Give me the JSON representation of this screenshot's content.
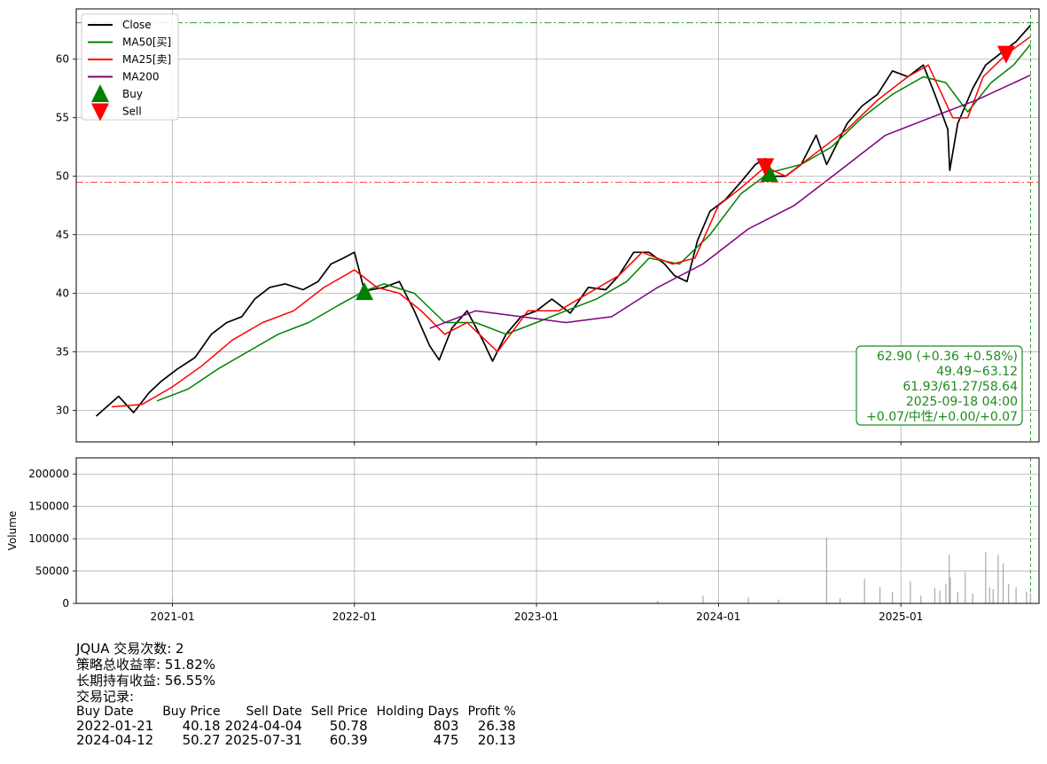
{
  "chart_data": [
    {
      "type": "line",
      "panel": "price",
      "ylim": [
        27.3,
        64.3
      ],
      "yticks": [
        30,
        35,
        40,
        45,
        50,
        55,
        60
      ],
      "x_range": [
        "2020-06-22",
        "2025-10-05"
      ],
      "grid": true,
      "legend": {
        "placement": "top-left",
        "entries": [
          {
            "label": "Close",
            "color": "#000000",
            "kind": "line"
          },
          {
            "label": "MA50[买]",
            "color": "#008000",
            "kind": "line"
          },
          {
            "label": "MA25[卖]",
            "color": "#ff0000",
            "kind": "line"
          },
          {
            "label": "MA200",
            "color": "#800080",
            "kind": "line"
          },
          {
            "label": "Buy",
            "color": "#008000",
            "kind": "triangle-up"
          },
          {
            "label": "Sell",
            "color": "#ff0000",
            "kind": "triangle-down"
          }
        ]
      },
      "series": [
        {
          "name": "Close",
          "color": "#000000",
          "points": [
            [
              "2020-08-01",
              29.5
            ],
            [
              "2020-09-15",
              31.2
            ],
            [
              "2020-10-15",
              29.8
            ],
            [
              "2020-11-15",
              31.5
            ],
            [
              "2020-12-10",
              32.5
            ],
            [
              "2021-01-10",
              33.5
            ],
            [
              "2021-02-15",
              34.5
            ],
            [
              "2021-03-20",
              36.5
            ],
            [
              "2021-04-20",
              37.5
            ],
            [
              "2021-05-20",
              38.0
            ],
            [
              "2021-06-15",
              39.5
            ],
            [
              "2021-07-15",
              40.5
            ],
            [
              "2021-08-15",
              40.8
            ],
            [
              "2021-09-20",
              40.3
            ],
            [
              "2021-10-20",
              41.0
            ],
            [
              "2021-11-15",
              42.5
            ],
            [
              "2021-12-10",
              43.0
            ],
            [
              "2022-01-01",
              43.5
            ],
            [
              "2022-01-21",
              40.2
            ],
            [
              "2022-03-01",
              40.5
            ],
            [
              "2022-04-01",
              41.0
            ],
            [
              "2022-05-01",
              38.5
            ],
            [
              "2022-06-01",
              35.5
            ],
            [
              "2022-06-20",
              34.3
            ],
            [
              "2022-07-15",
              37.0
            ],
            [
              "2022-08-15",
              38.5
            ],
            [
              "2022-09-15",
              36.0
            ],
            [
              "2022-10-05",
              34.2
            ],
            [
              "2022-11-01",
              36.5
            ],
            [
              "2022-12-01",
              38.0
            ],
            [
              "2023-01-01",
              38.5
            ],
            [
              "2023-02-01",
              39.5
            ],
            [
              "2023-03-10",
              38.3
            ],
            [
              "2023-04-15",
              40.5
            ],
            [
              "2023-05-20",
              40.3
            ],
            [
              "2023-06-15",
              41.5
            ],
            [
              "2023-07-15",
              43.5
            ],
            [
              "2023-08-15",
              43.5
            ],
            [
              "2023-09-15",
              42.5
            ],
            [
              "2023-10-05",
              41.5
            ],
            [
              "2023-10-30",
              41.0
            ],
            [
              "2023-11-20",
              44.5
            ],
            [
              "2023-12-15",
              47.0
            ],
            [
              "2024-01-15",
              48.0
            ],
            [
              "2024-02-15",
              49.5
            ],
            [
              "2024-03-15",
              51.0
            ],
            [
              "2024-04-04",
              51.5
            ],
            [
              "2024-04-20",
              50.0
            ],
            [
              "2024-05-15",
              50.0
            ],
            [
              "2024-06-15",
              51.0
            ],
            [
              "2024-07-15",
              53.5
            ],
            [
              "2024-08-05",
              51.0
            ],
            [
              "2024-09-15",
              54.5
            ],
            [
              "2024-10-15",
              56.0
            ],
            [
              "2024-11-15",
              57.0
            ],
            [
              "2024-12-15",
              59.0
            ],
            [
              "2025-01-15",
              58.5
            ],
            [
              "2025-02-15",
              59.5
            ],
            [
              "2025-03-10",
              57.0
            ],
            [
              "2025-04-05",
              54.0
            ],
            [
              "2025-04-09",
              50.5
            ],
            [
              "2025-04-25",
              54.5
            ],
            [
              "2025-05-25",
              57.5
            ],
            [
              "2025-06-20",
              59.5
            ],
            [
              "2025-07-20",
              60.5
            ],
            [
              "2025-08-20",
              61.5
            ],
            [
              "2025-09-18",
              62.9
            ]
          ]
        },
        {
          "name": "MA50[买]",
          "color": "#008000",
          "points": [
            [
              "2020-12-01",
              30.8
            ],
            [
              "2021-02-01",
              31.8
            ],
            [
              "2021-04-01",
              33.5
            ],
            [
              "2021-06-01",
              35.0
            ],
            [
              "2021-08-01",
              36.5
            ],
            [
              "2021-10-01",
              37.5
            ],
            [
              "2021-12-01",
              39.0
            ],
            [
              "2022-01-21",
              40.2
            ],
            [
              "2022-03-01",
              40.8
            ],
            [
              "2022-05-01",
              40.0
            ],
            [
              "2022-07-01",
              37.5
            ],
            [
              "2022-09-01",
              37.5
            ],
            [
              "2022-11-01",
              36.5
            ],
            [
              "2023-01-01",
              37.5
            ],
            [
              "2023-03-01",
              38.5
            ],
            [
              "2023-05-01",
              39.5
            ],
            [
              "2023-07-01",
              41.0
            ],
            [
              "2023-08-15",
              43.0
            ],
            [
              "2023-10-15",
              42.5
            ],
            [
              "2023-12-15",
              45.0
            ],
            [
              "2024-02-15",
              48.5
            ],
            [
              "2024-04-12",
              50.3
            ],
            [
              "2024-06-15",
              51.0
            ],
            [
              "2024-08-15",
              52.5
            ],
            [
              "2024-10-15",
              55.0
            ],
            [
              "2024-12-15",
              57.0
            ],
            [
              "2025-02-15",
              58.5
            ],
            [
              "2025-04-01",
              58.0
            ],
            [
              "2025-05-15",
              55.5
            ],
            [
              "2025-07-01",
              58.0
            ],
            [
              "2025-08-15",
              59.5
            ],
            [
              "2025-09-18",
              61.27
            ]
          ]
        },
        {
          "name": "MA25[卖]",
          "color": "#ff0000",
          "points": [
            [
              "2020-09-01",
              30.3
            ],
            [
              "2020-11-01",
              30.5
            ],
            [
              "2021-01-01",
              32.0
            ],
            [
              "2021-03-01",
              33.8
            ],
            [
              "2021-05-01",
              36.0
            ],
            [
              "2021-07-01",
              37.5
            ],
            [
              "2021-09-01",
              38.5
            ],
            [
              "2021-11-01",
              40.5
            ],
            [
              "2022-01-01",
              42.0
            ],
            [
              "2022-02-15",
              40.5
            ],
            [
              "2022-04-01",
              40.0
            ],
            [
              "2022-05-15",
              38.5
            ],
            [
              "2022-07-01",
              36.5
            ],
            [
              "2022-08-15",
              37.5
            ],
            [
              "2022-10-15",
              35.0
            ],
            [
              "2022-12-15",
              38.5
            ],
            [
              "2023-02-15",
              38.5
            ],
            [
              "2023-04-15",
              40.0
            ],
            [
              "2023-06-15",
              41.5
            ],
            [
              "2023-08-01",
              43.5
            ],
            [
              "2023-10-01",
              42.5
            ],
            [
              "2023-11-15",
              43.0
            ],
            [
              "2024-01-01",
              47.5
            ],
            [
              "2024-02-15",
              49.0
            ],
            [
              "2024-04-04",
              50.8
            ],
            [
              "2024-05-15",
              50.0
            ],
            [
              "2024-07-15",
              52.0
            ],
            [
              "2024-09-15",
              54.0
            ],
            [
              "2024-11-15",
              56.5
            ],
            [
              "2025-01-15",
              58.5
            ],
            [
              "2025-02-25",
              59.5
            ],
            [
              "2025-04-15",
              55.0
            ],
            [
              "2025-05-15",
              55.0
            ],
            [
              "2025-06-15",
              58.5
            ],
            [
              "2025-07-31",
              60.4
            ],
            [
              "2025-09-18",
              61.93
            ]
          ]
        },
        {
          "name": "MA200",
          "color": "#800080",
          "points": [
            [
              "2022-06-01",
              37.0
            ],
            [
              "2022-09-01",
              38.5
            ],
            [
              "2022-12-01",
              38.0
            ],
            [
              "2023-03-01",
              37.5
            ],
            [
              "2023-06-01",
              38.0
            ],
            [
              "2023-09-01",
              40.5
            ],
            [
              "2023-12-01",
              42.5
            ],
            [
              "2024-03-01",
              45.5
            ],
            [
              "2024-06-01",
              47.5
            ],
            [
              "2024-09-01",
              50.5
            ],
            [
              "2024-12-01",
              53.5
            ],
            [
              "2025-03-01",
              55.0
            ],
            [
              "2025-06-01",
              56.5
            ],
            [
              "2025-09-18",
              58.64
            ]
          ]
        }
      ],
      "markers": [
        {
          "kind": "buy",
          "date": "2022-01-21",
          "price": 40.18,
          "color": "#008000"
        },
        {
          "kind": "buy",
          "date": "2024-04-12",
          "price": 50.27,
          "color": "#008000"
        },
        {
          "kind": "sell",
          "date": "2024-04-04",
          "price": 50.78,
          "color": "#ff0000"
        },
        {
          "kind": "sell",
          "date": "2025-07-31",
          "price": 60.39,
          "color": "#ff0000"
        }
      ],
      "hlines": [
        {
          "y": 63.12,
          "color": "#2ca02c",
          "style": "dashdot"
        },
        {
          "y": 49.49,
          "color": "#ff4444",
          "style": "dashdot"
        }
      ],
      "vline": {
        "x": "2025-09-18",
        "color": "#2ca02c",
        "style": "dashed"
      },
      "info_box": {
        "lines": [
          "62.90 (+0.36 +0.58%)",
          "49.49~63.12",
          "61.93/61.27/58.64",
          "2025-09-18 04:00",
          "+0.07/中性/+0.00/+0.07"
        ],
        "color": "#1f8b1f"
      }
    },
    {
      "type": "bar",
      "panel": "volume",
      "ylabel": "Volume",
      "ylim": [
        0,
        225000
      ],
      "yticks": [
        0,
        50000,
        100000,
        150000,
        200000
      ],
      "xticks": [
        "2021-01",
        "2022-01",
        "2023-01",
        "2024-01",
        "2025-01"
      ],
      "grid": true,
      "color": "#aaaaaa",
      "bars": [
        [
          "2021-01-01",
          9000
        ],
        [
          "2022-01-01",
          4000
        ],
        [
          "2023-09-01",
          4000
        ],
        [
          "2023-12-01",
          12000
        ],
        [
          "2024-03-01",
          9000
        ],
        [
          "2024-05-01",
          6000
        ],
        [
          "2024-08-05",
          102000
        ],
        [
          "2024-09-01",
          8000
        ],
        [
          "2024-10-20",
          38000
        ],
        [
          "2024-11-20",
          25000
        ],
        [
          "2024-12-15",
          18000
        ],
        [
          "2025-01-20",
          34000
        ],
        [
          "2025-02-10",
          12000
        ],
        [
          "2025-03-10",
          24000
        ],
        [
          "2025-03-20",
          20000
        ],
        [
          "2025-04-01",
          30000
        ],
        [
          "2025-04-08",
          75000
        ],
        [
          "2025-04-10",
          40000
        ],
        [
          "2025-04-25",
          18000
        ],
        [
          "2025-05-10",
          48000
        ],
        [
          "2025-05-25",
          15000
        ],
        [
          "2025-06-20",
          79000
        ],
        [
          "2025-06-28",
          25000
        ],
        [
          "2025-07-05",
          22000
        ],
        [
          "2025-07-15",
          75000
        ],
        [
          "2025-07-25",
          62000
        ],
        [
          "2025-08-05",
          30000
        ],
        [
          "2025-08-20",
          25000
        ],
        [
          "2025-09-10",
          18000
        ],
        [
          "2025-09-18",
          16000
        ]
      ]
    }
  ],
  "summary": {
    "trade_count": "JQUA 交易次数: 2",
    "strategy_return": "策略总收益率: 51.82%",
    "buy_hold_return": "长期持有收益: 56.55%",
    "records_title": "交易记录:",
    "table_headers": [
      "Buy Date",
      "Buy Price",
      "Sell Date",
      "Sell Price",
      "Holding Days",
      "Profit %"
    ],
    "table_rows": [
      [
        "2022-01-21",
        "40.18",
        "2024-04-04",
        "50.78",
        "803",
        "26.38"
      ],
      [
        "2024-04-12",
        "50.27",
        "2025-07-31",
        "60.39",
        "475",
        "20.13"
      ]
    ]
  }
}
